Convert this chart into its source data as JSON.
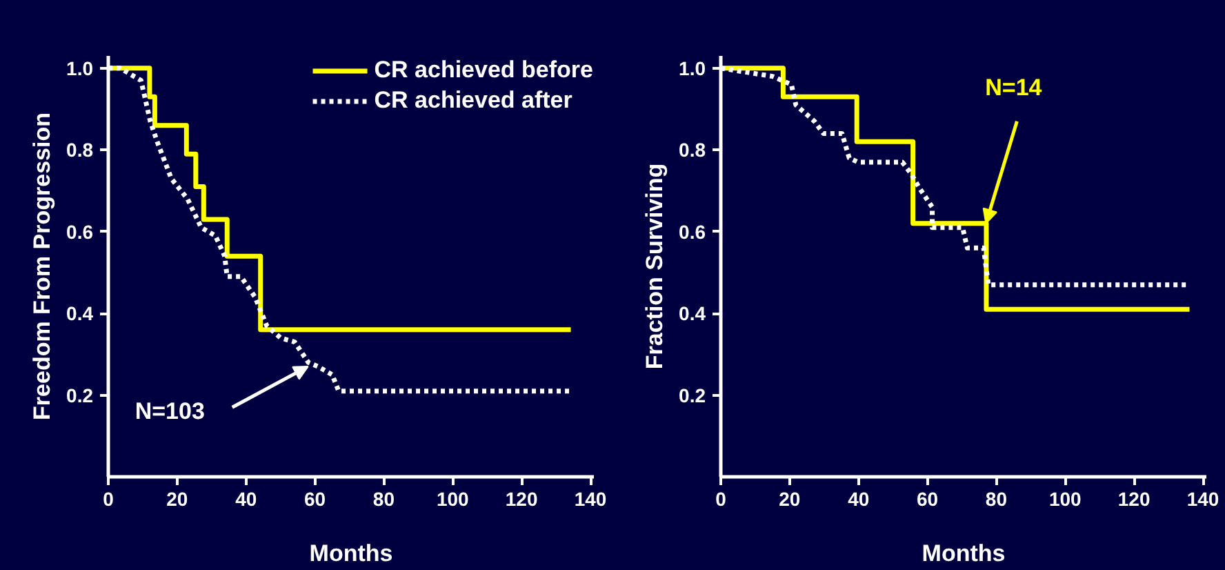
{
  "chart_data": [
    {
      "type": "step",
      "xlabel": "Months",
      "ylabel": "Freedom From Progression",
      "xlim": [
        0,
        141
      ],
      "ylim": [
        0,
        1.03
      ],
      "xticks": [
        0,
        20,
        40,
        60,
        80,
        100,
        120,
        140
      ],
      "yticks": [
        0.2,
        0.4,
        0.6,
        0.8,
        {
          "value": 1,
          "label": "1.0"
        }
      ],
      "grid": false,
      "legend": "top right",
      "marker": "none",
      "series": [
        {
          "name": "CR achieved before",
          "color": "#ffff00",
          "line_style": "solid",
          "x": [
            0,
            12,
            13.5,
            22.7,
            25.4,
            27.7,
            34.5,
            44.2,
            134.3
          ],
          "values": [
            1.0,
            0.93,
            0.86,
            0.79,
            0.71,
            0.63,
            0.54,
            0.36,
            0.36
          ]
        },
        {
          "name": "CR achieved after",
          "type": "line",
          "color": "#ffffff",
          "line_style": "dotted",
          "x": [
            0,
            3.4,
            9.5,
            12.2,
            14.2,
            18.3,
            23,
            27,
            31.1,
            33.8,
            34.5,
            38.5,
            42.6,
            46,
            50,
            54.1,
            58.1,
            60.9,
            65,
            66.9,
            134.3
          ],
          "values": [
            1.0,
            1.0,
            0.97,
            0.87,
            0.82,
            0.73,
            0.68,
            0.61,
            0.59,
            0.54,
            0.49,
            0.49,
            0.44,
            0.37,
            0.34,
            0.33,
            0.28,
            0.27,
            0.25,
            0.21,
            0.21
          ]
        }
      ],
      "annotations": [
        {
          "text": "N=103",
          "x": 58,
          "y": 0.27
        }
      ]
    },
    {
      "type": "step",
      "xlabel": "Months",
      "ylabel": "Fraction Surviving",
      "xlim": [
        0,
        141
      ],
      "ylim": [
        0,
        1.03
      ],
      "xticks": [
        0,
        20,
        40,
        60,
        80,
        100,
        120,
        140
      ],
      "yticks": [
        0.2,
        0.4,
        0.6,
        0.8,
        {
          "value": 1,
          "label": "1.0"
        }
      ],
      "grid": false,
      "legend": false,
      "marker": "none",
      "series": [
        {
          "color": "#ffff00",
          "line_style": "solid",
          "x": [
            0,
            18.1,
            39.5,
            55.8,
            77.1,
            136.1
          ],
          "values": [
            1.0,
            0.93,
            0.82,
            0.62,
            0.41,
            0.41
          ]
        },
        {
          "type": "line",
          "color": "#ffffff",
          "line_style": "dotted",
          "x": [
            0,
            15,
            20.5,
            21.8,
            27.2,
            29.8,
            35.2,
            37.3,
            39.9,
            52.7,
            55.4,
            57.4,
            61.4,
            61.4,
            70.2,
            71.6,
            76.3,
            77.7,
            136.1
          ],
          "values": [
            1.0,
            0.98,
            0.96,
            0.91,
            0.87,
            0.84,
            0.84,
            0.78,
            0.77,
            0.77,
            0.74,
            0.71,
            0.66,
            0.61,
            0.61,
            0.56,
            0.56,
            0.47,
            0.47
          ]
        }
      ],
      "annotations": [
        {
          "text": "N=14",
          "x": 77,
          "y": 0.62
        }
      ]
    }
  ]
}
